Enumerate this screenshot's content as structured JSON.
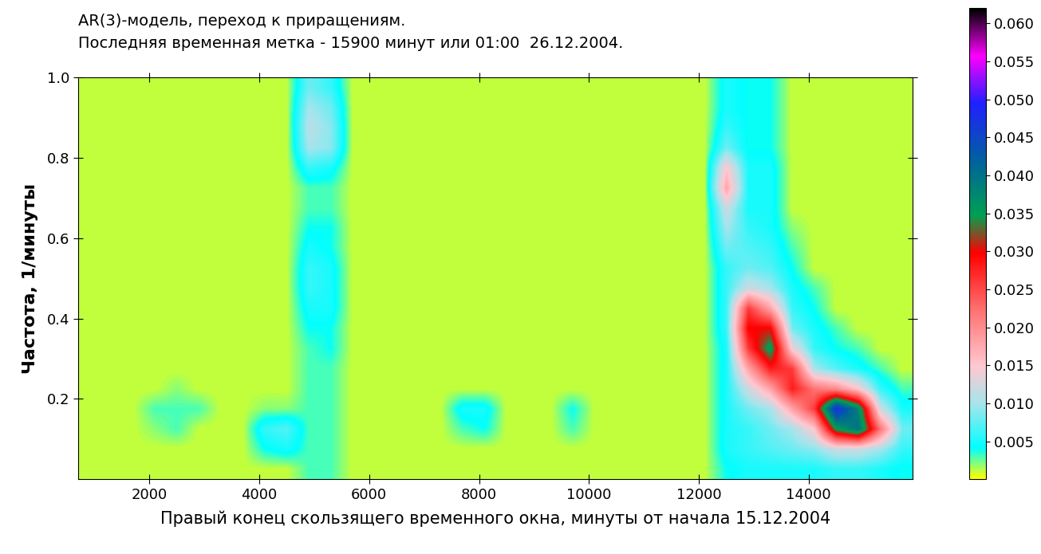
{
  "chart_data": {
    "type": "heatmap",
    "title": "AR(3)-модель, переход к приращениям.",
    "subtitle": "Последняя временная метка - 15900 минут или 01:00  26.12.2004.",
    "x_label": "Правый конец скользящего временного окна, минуты от начала 15.12.2004",
    "y_label": "Частота, 1/минуты",
    "x": [
      900,
      1300,
      1700,
      2100,
      2500,
      2900,
      3300,
      3700,
      4100,
      4500,
      4900,
      5300,
      5700,
      6100,
      6500,
      6900,
      7300,
      7700,
      8100,
      8500,
      8900,
      9300,
      9700,
      10100,
      10500,
      10900,
      11300,
      11700,
      12100,
      12500,
      12900,
      13300,
      13700,
      14100,
      14500,
      14900,
      15300,
      15700
    ],
    "y": [
      0.025,
      0.075,
      0.125,
      0.175,
      0.225,
      0.275,
      0.325,
      0.375,
      0.425,
      0.475,
      0.525,
      0.575,
      0.625,
      0.675,
      0.725,
      0.775,
      0.825,
      0.875,
      0.925,
      0.975
    ],
    "values": [
      [
        0.001,
        0.001,
        0.001,
        0.001,
        0.001,
        0.001,
        0.001,
        0.001,
        0.001,
        0.001,
        0.003,
        0.003,
        0.001,
        0.001,
        0.001,
        0.001,
        0.001,
        0.001,
        0.001,
        0.001,
        0.001,
        0.001,
        0.001,
        0.001,
        0.001,
        0.001,
        0.001,
        0.001,
        0.001,
        0.004,
        0.005,
        0.005,
        0.005,
        0.005,
        0.006,
        0.006,
        0.005,
        0.004
      ],
      [
        0.001,
        0.001,
        0.001,
        0.001,
        0.001,
        0.001,
        0.001,
        0.001,
        0.004,
        0.005,
        0.003,
        0.003,
        0.001,
        0.001,
        0.001,
        0.001,
        0.001,
        0.001,
        0.001,
        0.001,
        0.001,
        0.001,
        0.001,
        0.001,
        0.001,
        0.001,
        0.001,
        0.001,
        0.001,
        0.005,
        0.006,
        0.007,
        0.008,
        0.009,
        0.012,
        0.012,
        0.01,
        0.006
      ],
      [
        0.001,
        0.001,
        0.001,
        0.002,
        0.003,
        0.001,
        0.001,
        0.001,
        0.006,
        0.007,
        0.003,
        0.003,
        0.001,
        0.001,
        0.001,
        0.001,
        0.001,
        0.003,
        0.004,
        0.001,
        0.001,
        0.001,
        0.003,
        0.001,
        0.001,
        0.001,
        0.001,
        0.001,
        0.001,
        0.005,
        0.006,
        0.008,
        0.01,
        0.015,
        0.035,
        0.04,
        0.022,
        0.008
      ],
      [
        0.001,
        0.001,
        0.001,
        0.003,
        0.003,
        0.003,
        0.001,
        0.001,
        0.002,
        0.002,
        0.003,
        0.003,
        0.001,
        0.001,
        0.001,
        0.001,
        0.001,
        0.005,
        0.005,
        0.001,
        0.001,
        0.001,
        0.004,
        0.001,
        0.001,
        0.001,
        0.001,
        0.001,
        0.001,
        0.005,
        0.008,
        0.01,
        0.018,
        0.026,
        0.048,
        0.038,
        0.012,
        0.005
      ],
      [
        0.001,
        0.001,
        0.001,
        0.001,
        0.002,
        0.001,
        0.001,
        0.001,
        0.001,
        0.001,
        0.003,
        0.003,
        0.001,
        0.001,
        0.001,
        0.001,
        0.001,
        0.001,
        0.001,
        0.001,
        0.001,
        0.001,
        0.001,
        0.001,
        0.001,
        0.001,
        0.001,
        0.001,
        0.001,
        0.005,
        0.012,
        0.018,
        0.028,
        0.022,
        0.02,
        0.015,
        0.006,
        0.003
      ],
      [
        0.001,
        0.001,
        0.001,
        0.001,
        0.001,
        0.001,
        0.001,
        0.001,
        0.001,
        0.001,
        0.003,
        0.003,
        0.001,
        0.001,
        0.001,
        0.001,
        0.001,
        0.001,
        0.001,
        0.001,
        0.001,
        0.001,
        0.001,
        0.001,
        0.001,
        0.001,
        0.001,
        0.001,
        0.001,
        0.005,
        0.018,
        0.028,
        0.026,
        0.01,
        0.007,
        0.005,
        0.003,
        0.001
      ],
      [
        0.001,
        0.001,
        0.001,
        0.001,
        0.001,
        0.001,
        0.001,
        0.001,
        0.001,
        0.001,
        0.003,
        0.004,
        0.001,
        0.001,
        0.001,
        0.001,
        0.001,
        0.001,
        0.001,
        0.001,
        0.001,
        0.001,
        0.001,
        0.001,
        0.001,
        0.001,
        0.001,
        0.001,
        0.001,
        0.005,
        0.026,
        0.036,
        0.014,
        0.006,
        0.004,
        0.003,
        0.001,
        0.001
      ],
      [
        0.001,
        0.001,
        0.001,
        0.001,
        0.001,
        0.001,
        0.001,
        0.001,
        0.001,
        0.001,
        0.004,
        0.004,
        0.001,
        0.001,
        0.001,
        0.001,
        0.001,
        0.001,
        0.001,
        0.001,
        0.001,
        0.001,
        0.001,
        0.001,
        0.001,
        0.001,
        0.001,
        0.001,
        0.001,
        0.006,
        0.03,
        0.03,
        0.008,
        0.005,
        0.003,
        0.001,
        0.001,
        0.001
      ],
      [
        0.001,
        0.001,
        0.001,
        0.001,
        0.001,
        0.001,
        0.001,
        0.001,
        0.001,
        0.001,
        0.005,
        0.005,
        0.001,
        0.001,
        0.001,
        0.001,
        0.001,
        0.001,
        0.001,
        0.001,
        0.001,
        0.001,
        0.001,
        0.001,
        0.001,
        0.001,
        0.001,
        0.001,
        0.001,
        0.006,
        0.026,
        0.018,
        0.006,
        0.004,
        0.001,
        0.001,
        0.001,
        0.001
      ],
      [
        0.001,
        0.001,
        0.001,
        0.001,
        0.001,
        0.001,
        0.001,
        0.001,
        0.001,
        0.001,
        0.006,
        0.005,
        0.001,
        0.001,
        0.001,
        0.001,
        0.001,
        0.001,
        0.001,
        0.001,
        0.001,
        0.001,
        0.001,
        0.001,
        0.001,
        0.001,
        0.001,
        0.001,
        0.001,
        0.006,
        0.012,
        0.01,
        0.005,
        0.003,
        0.001,
        0.001,
        0.001,
        0.001
      ],
      [
        0.001,
        0.001,
        0.001,
        0.001,
        0.001,
        0.001,
        0.001,
        0.001,
        0.001,
        0.001,
        0.006,
        0.005,
        0.001,
        0.001,
        0.001,
        0.001,
        0.001,
        0.001,
        0.001,
        0.001,
        0.001,
        0.001,
        0.001,
        0.001,
        0.001,
        0.001,
        0.001,
        0.001,
        0.001,
        0.006,
        0.008,
        0.007,
        0.004,
        0.001,
        0.001,
        0.001,
        0.001,
        0.001
      ],
      [
        0.001,
        0.001,
        0.001,
        0.001,
        0.001,
        0.001,
        0.001,
        0.001,
        0.001,
        0.001,
        0.005,
        0.004,
        0.001,
        0.001,
        0.001,
        0.001,
        0.001,
        0.001,
        0.001,
        0.001,
        0.001,
        0.001,
        0.001,
        0.001,
        0.001,
        0.001,
        0.001,
        0.001,
        0.001,
        0.008,
        0.007,
        0.006,
        0.003,
        0.001,
        0.001,
        0.001,
        0.001,
        0.001
      ],
      [
        0.001,
        0.001,
        0.001,
        0.001,
        0.001,
        0.001,
        0.001,
        0.001,
        0.001,
        0.001,
        0.004,
        0.004,
        0.001,
        0.001,
        0.001,
        0.001,
        0.001,
        0.001,
        0.001,
        0.001,
        0.001,
        0.001,
        0.001,
        0.001,
        0.001,
        0.001,
        0.001,
        0.001,
        0.001,
        0.01,
        0.006,
        0.005,
        0.002,
        0.001,
        0.001,
        0.001,
        0.001,
        0.001
      ],
      [
        0.001,
        0.001,
        0.001,
        0.001,
        0.001,
        0.001,
        0.001,
        0.001,
        0.001,
        0.001,
        0.003,
        0.003,
        0.001,
        0.001,
        0.001,
        0.001,
        0.001,
        0.001,
        0.001,
        0.001,
        0.001,
        0.001,
        0.001,
        0.001,
        0.001,
        0.001,
        0.001,
        0.001,
        0.001,
        0.012,
        0.005,
        0.005,
        0.001,
        0.001,
        0.001,
        0.001,
        0.001,
        0.001
      ],
      [
        0.001,
        0.001,
        0.001,
        0.001,
        0.001,
        0.001,
        0.001,
        0.001,
        0.001,
        0.001,
        0.003,
        0.003,
        0.001,
        0.001,
        0.001,
        0.001,
        0.001,
        0.001,
        0.001,
        0.001,
        0.001,
        0.001,
        0.001,
        0.001,
        0.001,
        0.001,
        0.001,
        0.001,
        0.001,
        0.018,
        0.005,
        0.005,
        0.001,
        0.001,
        0.001,
        0.001,
        0.001,
        0.001
      ],
      [
        0.001,
        0.001,
        0.001,
        0.001,
        0.001,
        0.001,
        0.001,
        0.001,
        0.001,
        0.001,
        0.006,
        0.005,
        0.001,
        0.001,
        0.001,
        0.001,
        0.001,
        0.001,
        0.001,
        0.001,
        0.001,
        0.001,
        0.001,
        0.001,
        0.001,
        0.001,
        0.001,
        0.001,
        0.001,
        0.015,
        0.005,
        0.005,
        0.001,
        0.001,
        0.001,
        0.001,
        0.001,
        0.001
      ],
      [
        0.001,
        0.001,
        0.001,
        0.001,
        0.001,
        0.001,
        0.001,
        0.001,
        0.001,
        0.001,
        0.01,
        0.009,
        0.001,
        0.001,
        0.001,
        0.001,
        0.001,
        0.001,
        0.001,
        0.001,
        0.001,
        0.001,
        0.001,
        0.001,
        0.001,
        0.001,
        0.001,
        0.001,
        0.001,
        0.008,
        0.004,
        0.004,
        0.001,
        0.001,
        0.001,
        0.001,
        0.001,
        0.001
      ],
      [
        0.001,
        0.001,
        0.001,
        0.001,
        0.001,
        0.001,
        0.001,
        0.001,
        0.001,
        0.001,
        0.011,
        0.009,
        0.001,
        0.001,
        0.001,
        0.001,
        0.001,
        0.001,
        0.001,
        0.001,
        0.001,
        0.001,
        0.001,
        0.001,
        0.001,
        0.001,
        0.001,
        0.001,
        0.001,
        0.006,
        0.004,
        0.004,
        0.001,
        0.001,
        0.001,
        0.001,
        0.001,
        0.001
      ],
      [
        0.001,
        0.001,
        0.001,
        0.001,
        0.001,
        0.001,
        0.001,
        0.001,
        0.001,
        0.001,
        0.01,
        0.008,
        0.001,
        0.001,
        0.001,
        0.001,
        0.001,
        0.001,
        0.001,
        0.001,
        0.001,
        0.001,
        0.001,
        0.001,
        0.001,
        0.001,
        0.001,
        0.001,
        0.001,
        0.005,
        0.004,
        0.004,
        0.001,
        0.001,
        0.001,
        0.001,
        0.001,
        0.001
      ],
      [
        0.001,
        0.001,
        0.001,
        0.001,
        0.001,
        0.001,
        0.001,
        0.001,
        0.001,
        0.001,
        0.008,
        0.006,
        0.001,
        0.001,
        0.001,
        0.001,
        0.001,
        0.001,
        0.001,
        0.001,
        0.001,
        0.001,
        0.001,
        0.001,
        0.001,
        0.001,
        0.001,
        0.001,
        0.001,
        0.005,
        0.004,
        0.004,
        0.001,
        0.001,
        0.001,
        0.001,
        0.001,
        0.001
      ]
    ],
    "xlim": [
      700,
      15900
    ],
    "ylim": [
      0,
      1
    ],
    "xticks": [
      2000,
      4000,
      6000,
      8000,
      10000,
      12000,
      14000
    ],
    "yticks": [
      0.2,
      0.4,
      0.6,
      0.8,
      {
        "value": 1,
        "label": "1.0"
      }
    ],
    "colorbar_range": [
      0,
      0.062
    ],
    "colorbar_ticks": [
      0.005,
      {
        "value": 0.01,
        "label": "0.010"
      },
      0.015,
      {
        "value": 0.02,
        "label": "0.020"
      },
      0.025,
      {
        "value": 0.03,
        "label": "0.030"
      },
      0.035,
      {
        "value": 0.04,
        "label": "0.040"
      },
      0.045,
      {
        "value": 0.05,
        "label": "0.050"
      },
      0.055,
      {
        "value": 0.06,
        "label": "0.060"
      }
    ]
  }
}
